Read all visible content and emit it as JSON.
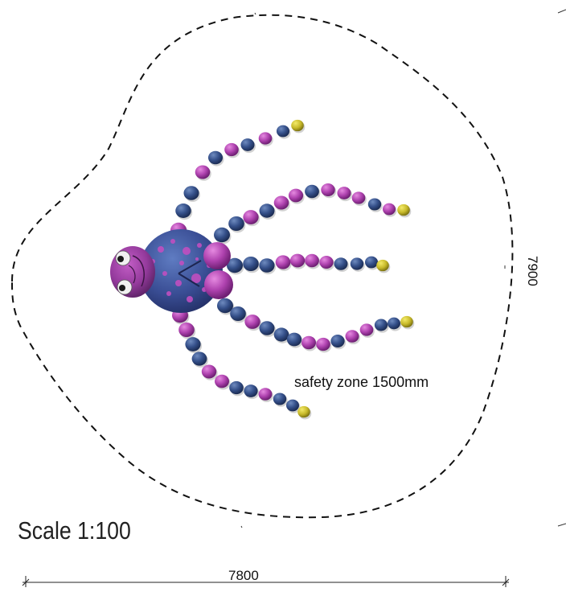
{
  "drawing": {
    "safety_zone_label": "safety zone 1500mm",
    "scale_label": "Scale 1:100",
    "width_dimension": "7800",
    "height_dimension": "7900"
  },
  "colors": {
    "body": "#3c4f8f",
    "purple": "#9a3399",
    "navy": "#2f4878",
    "yellow": "#c9bd2a",
    "outline": "#111111"
  },
  "icons": {
    "figure": "octopus-play-equipment"
  }
}
